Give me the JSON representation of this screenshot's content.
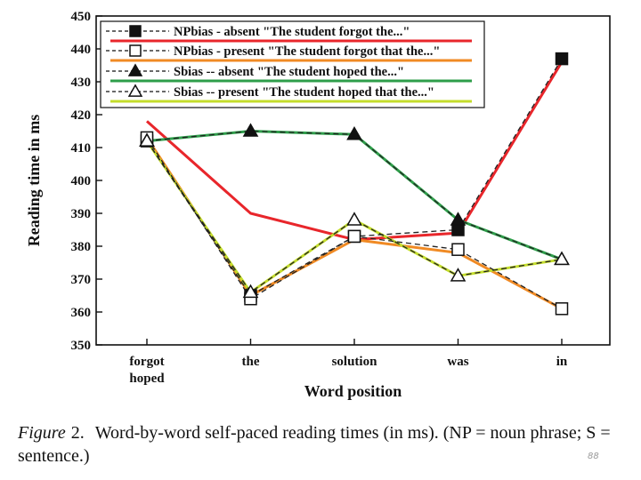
{
  "chart_data": {
    "type": "line",
    "categories": [
      "forgot",
      "the",
      "solution",
      "was",
      "in"
    ],
    "category_sub_labels": [
      "hoped",
      "",
      "",
      "",
      ""
    ],
    "xlabel": "Word position",
    "ylabel": "Reading time in ms",
    "ylim": [
      350,
      450
    ],
    "yticks": [
      350,
      360,
      370,
      380,
      390,
      400,
      410,
      420,
      430,
      440,
      450
    ],
    "legend_position": "top-left",
    "grid": false,
    "series": [
      {
        "name": "NPbias - absent \"The student forgot the...\"",
        "values": [
          412,
          365,
          383,
          385,
          437
        ],
        "marker": "filled-square",
        "line_style": "dashed",
        "highlight_values": [
          418,
          390,
          382,
          384,
          436
        ],
        "highlight_color": "#e8262b"
      },
      {
        "name": "NPbias - present \"The student forgot that the...\"",
        "values": [
          413,
          364,
          383,
          379,
          361
        ],
        "marker": "open-square",
        "line_style": "dashed",
        "highlight_values": [
          413,
          365,
          382,
          378,
          361
        ],
        "highlight_color": "#f08a24"
      },
      {
        "name": "Sbias -- absent \"The student hoped the...\"",
        "values": [
          412,
          415,
          414,
          388,
          376
        ],
        "marker": "filled-triangle",
        "line_style": "dashed",
        "highlight_values": [
          412,
          415,
          414,
          388,
          376
        ],
        "highlight_color": "#2e9e4a"
      },
      {
        "name": "Sbias -- present \"The student hoped that the...\"",
        "values": [
          412,
          366,
          388,
          371,
          376
        ],
        "marker": "open-triangle",
        "line_style": "dashed",
        "highlight_values": [
          412,
          366,
          388,
          371,
          376
        ],
        "highlight_color": "#c4dd2b"
      }
    ]
  },
  "caption": {
    "label": "Figure",
    "number": "2.",
    "text": "Word-by-word self-paced reading times (in ms). (NP = noun phrase; S = sentence.)"
  },
  "page_number": "88"
}
